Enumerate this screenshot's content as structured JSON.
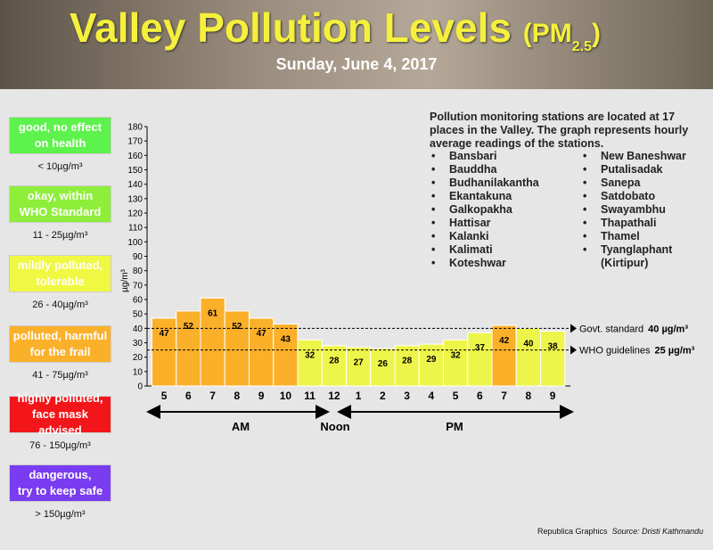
{
  "header": {
    "title": "Valley Pollution Levels",
    "title_open": "(PM",
    "title_subscript": "2.5",
    "title_close": ")",
    "date": "Sunday, June 4, 2017"
  },
  "legend": [
    {
      "label_lines": [
        "good, no effect",
        "on health"
      ],
      "range": "< 10µg/m³",
      "color": "#5ef24c"
    },
    {
      "label_lines": [
        "okay, within",
        "WHO Standard"
      ],
      "range": "11 - 25µg/m³",
      "color": "#8eee3a"
    },
    {
      "label_lines": [
        "mildly polluted,",
        "tolerable"
      ],
      "range": "26 - 40µg/m³",
      "color": "#f1f843"
    },
    {
      "label_lines": [
        "polluted, harmful",
        "for the frail"
      ],
      "range": "41 - 75µg/m³",
      "color": "#fbb02a"
    },
    {
      "label_lines": [
        "highly polluted,",
        "face mask advised"
      ],
      "range": "76 - 150µg/m³",
      "color": "#f2161a"
    },
    {
      "label_lines": [
        "dangerous,",
        "try to keep safe"
      ],
      "range": "> 150µg/m³",
      "color": "#7a3cf0"
    }
  ],
  "chart_data": {
    "type": "bar",
    "y_label": "µg/m³",
    "categories": [
      "5",
      "6",
      "7",
      "8",
      "9",
      "10",
      "11",
      "12",
      "1",
      "2",
      "3",
      "4",
      "5",
      "6",
      "7",
      "8",
      "9"
    ],
    "values": [
      47,
      52,
      61,
      52,
      47,
      43,
      32,
      28,
      27,
      26,
      28,
      29,
      32,
      37,
      42,
      40,
      38
    ],
    "colors": [
      "#fbb02a",
      "#fbb02a",
      "#fbb02a",
      "#fbb02a",
      "#fbb02a",
      "#fbb02a",
      "#eef54a",
      "#eef54a",
      "#eef54a",
      "#eef54a",
      "#eef54a",
      "#eef54a",
      "#eef54a",
      "#eef54a",
      "#fbb02a",
      "#eef54a",
      "#eef54a"
    ],
    "ylim": [
      0,
      180
    ],
    "yticks": [
      0,
      10,
      20,
      30,
      40,
      50,
      60,
      70,
      80,
      90,
      100,
      110,
      120,
      130,
      140,
      150,
      160,
      170,
      180
    ],
    "reference_lines": [
      {
        "name": "Govt. standard",
        "value": 40,
        "value_label": "40 µg/m³"
      },
      {
        "name": "WHO guidelines",
        "value": 25,
        "value_label": "25 µg/m³"
      }
    ],
    "periods": [
      "AM",
      "Noon",
      "PM"
    ]
  },
  "note": "Pollution monitoring stations are located at 17 places in the Valley. The graph represents hourly average readings of the stations.",
  "stations": [
    [
      "Bansbari",
      "Bauddha",
      "Budhanilakantha",
      "Ekantakuna",
      "Galkopakha",
      "Hattisar",
      "Kalanki",
      "Kalimati",
      "Koteshwar"
    ],
    [
      "New Baneshwar",
      "Putalisadak",
      "Sanepa",
      "Satdobato",
      "Swayambhu",
      "Thapathali",
      "Thamel",
      "Tyanglaphant (Kirtipur)"
    ]
  ],
  "footer": {
    "credit": "Republica Graphics",
    "source": "Source: Dristi Kathmandu"
  }
}
